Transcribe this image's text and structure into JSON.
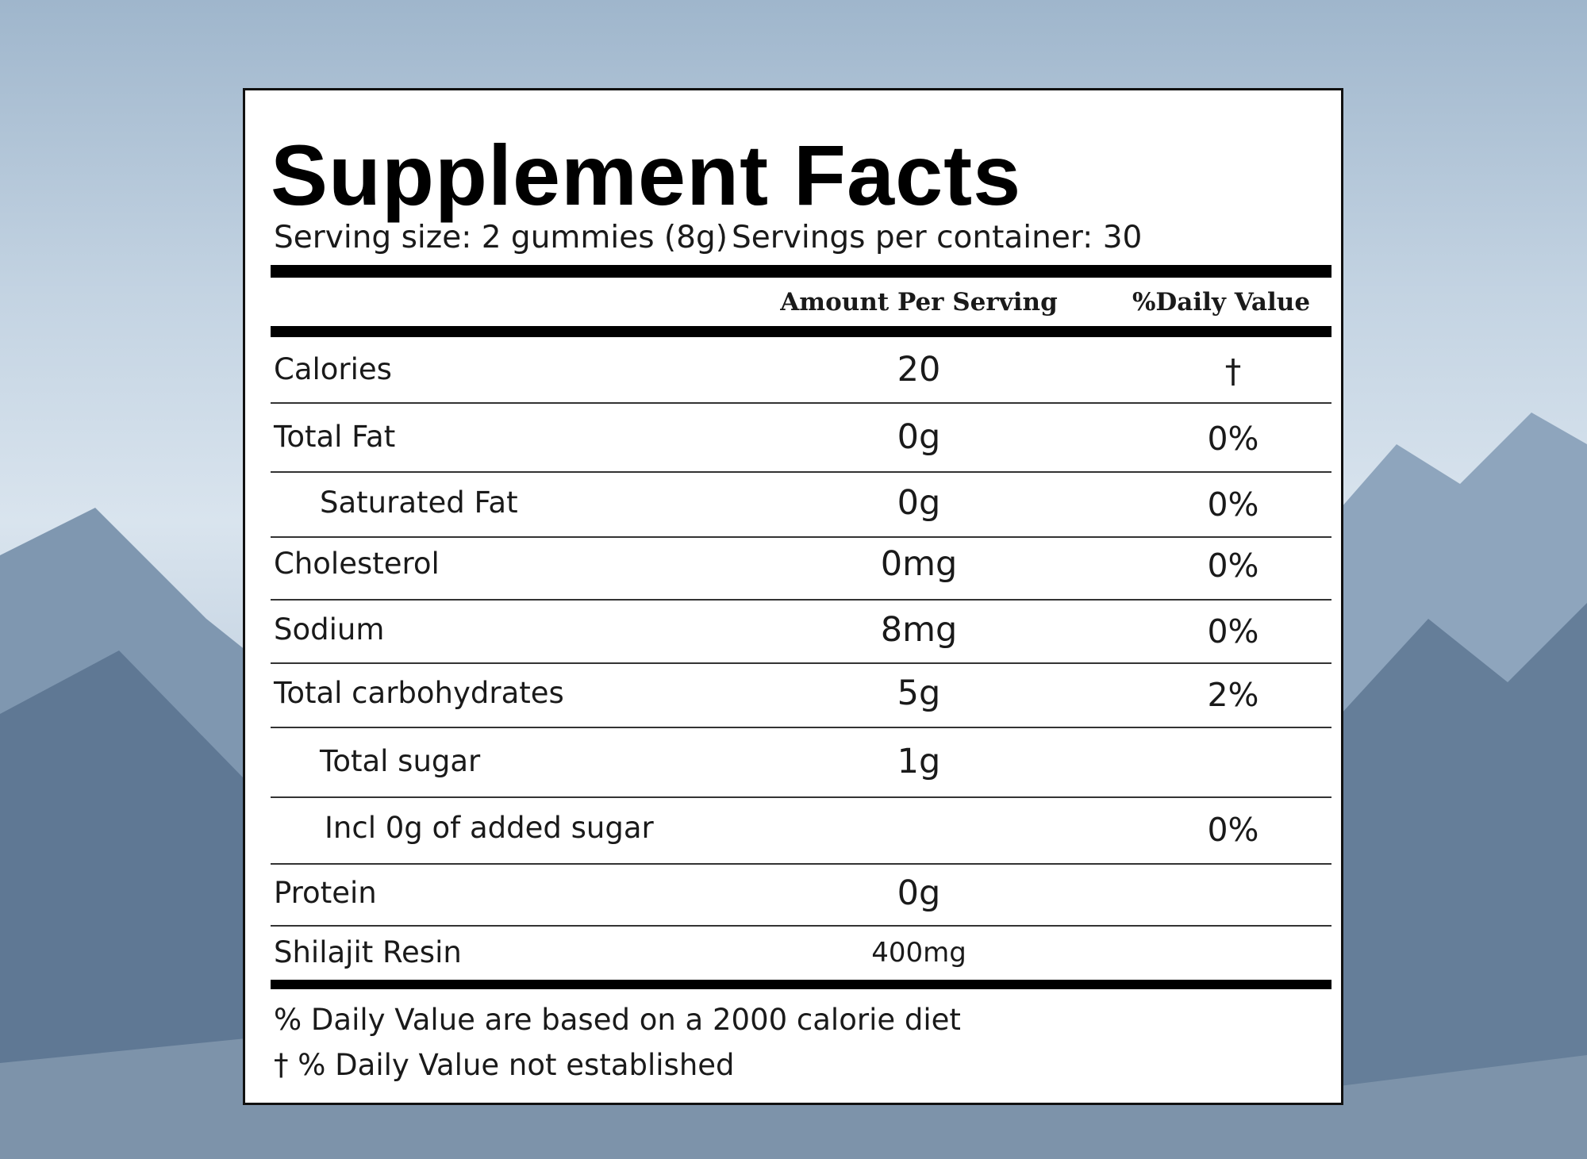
{
  "label": {
    "title": "Supplement Facts",
    "serving_size": "Serving size: 2 gummies (8g)",
    "servings_per_container": "Servings per container: 30",
    "headers": [
      "Amount Per Serving",
      "%Daily Value"
    ],
    "rows": [
      {
        "name": "Calories",
        "amount": "20",
        "daily_value": "†"
      },
      {
        "name": "Total Fat",
        "amount": "0g",
        "daily_value": "0%"
      },
      {
        "name": "Saturated Fat",
        "amount": "0g",
        "daily_value": "0%"
      },
      {
        "name": "Cholesterol",
        "amount": "0mg",
        "daily_value": "0%"
      },
      {
        "name": "Sodium",
        "amount": "8mg",
        "daily_value": "0%"
      },
      {
        "name": "Total carbohydrates",
        "amount": "5g",
        "daily_value": "2%"
      },
      {
        "name": "Total sugar",
        "amount": "1g",
        "daily_value": null
      },
      {
        "name": "Incl 0g of added sugar",
        "amount": null,
        "daily_value": "0%"
      },
      {
        "name": "Protein",
        "amount": "0g",
        "daily_value": null
      },
      {
        "name": "Shilajit Resin",
        "amount": "400mg",
        "daily_value": null
      }
    ],
    "footnotes": [
      "% Daily Value are based on a 2000 calorie diet",
      "† % Daily Value not established"
    ]
  }
}
